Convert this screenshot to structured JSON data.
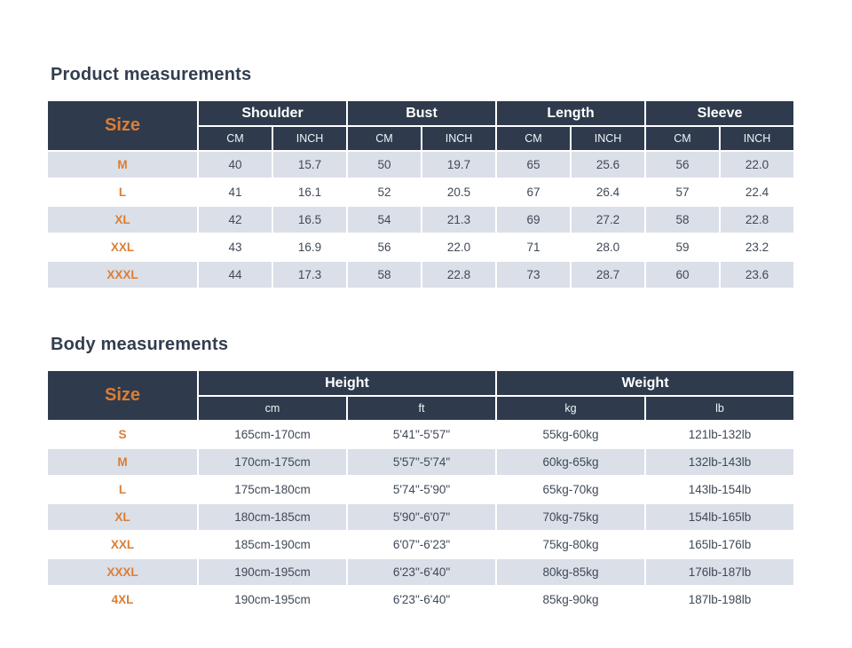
{
  "colors": {
    "header_navy": "#2f3b4d",
    "accent_orange": "#dd7d33",
    "row_stripe": "#dadfe8",
    "title_text": "#323e4f",
    "cell_text": "#3f4956",
    "header_text": "#ffffff"
  },
  "product_table": {
    "title": "Product measurements",
    "size_header": "Size",
    "groups": [
      "Shoulder",
      "Bust",
      "Length",
      "Sleeve"
    ],
    "subheaders": [
      "CM",
      "INCH",
      "CM",
      "INCH",
      "CM",
      "INCH",
      "CM",
      "INCH"
    ],
    "rows": [
      {
        "size": "M",
        "cells": [
          "40",
          "15.7",
          "50",
          "19.7",
          "65",
          "25.6",
          "56",
          "22.0"
        ]
      },
      {
        "size": "L",
        "cells": [
          "41",
          "16.1",
          "52",
          "20.5",
          "67",
          "26.4",
          "57",
          "22.4"
        ]
      },
      {
        "size": "XL",
        "cells": [
          "42",
          "16.5",
          "54",
          "21.3",
          "69",
          "27.2",
          "58",
          "22.8"
        ]
      },
      {
        "size": "XXL",
        "cells": [
          "43",
          "16.9",
          "56",
          "22.0",
          "71",
          "28.0",
          "59",
          "23.2"
        ]
      },
      {
        "size": "XXXL",
        "cells": [
          "44",
          "17.3",
          "58",
          "22.8",
          "73",
          "28.7",
          "60",
          "23.6"
        ]
      }
    ]
  },
  "body_table": {
    "title": "Body measurements",
    "size_header": "Size",
    "groups": [
      "Height",
      "Weight"
    ],
    "subheaders": [
      "cm",
      "ft",
      "kg",
      "lb"
    ],
    "rows": [
      {
        "size": "S",
        "cells": [
          "165cm-170cm",
          "5'41\"-5'57\"",
          "55kg-60kg",
          "121lb-132lb"
        ]
      },
      {
        "size": "M",
        "cells": [
          "170cm-175cm",
          "5'57\"-5'74\"",
          "60kg-65kg",
          "132lb-143lb"
        ]
      },
      {
        "size": "L",
        "cells": [
          "175cm-180cm",
          "5'74\"-5'90\"",
          "65kg-70kg",
          "143lb-154lb"
        ]
      },
      {
        "size": "XL",
        "cells": [
          "180cm-185cm",
          "5'90\"-6'07\"",
          "70kg-75kg",
          "154lb-165lb"
        ]
      },
      {
        "size": "XXL",
        "cells": [
          "185cm-190cm",
          "6'07\"-6'23\"",
          "75kg-80kg",
          "165lb-176lb"
        ]
      },
      {
        "size": "XXXL",
        "cells": [
          "190cm-195cm",
          "6'23\"-6'40\"",
          "80kg-85kg",
          "176lb-187lb"
        ]
      },
      {
        "size": "4XL",
        "cells": [
          "190cm-195cm",
          "6'23\"-6'40\"",
          "85kg-90kg",
          "187lb-198lb"
        ]
      }
    ]
  }
}
